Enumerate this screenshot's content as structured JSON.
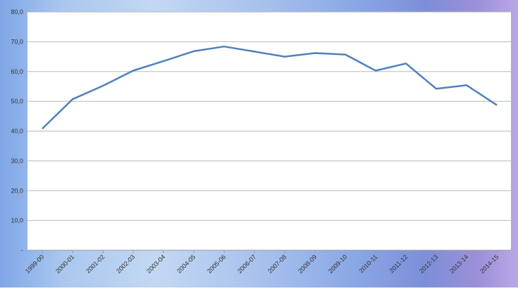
{
  "chart_data": {
    "type": "line",
    "title": "",
    "xlabel": "",
    "ylabel": "",
    "categories": [
      "1999-00",
      "2000-01",
      "2001-02",
      "2002-03",
      "2003-04",
      "2004-05",
      "2005-06",
      "2006-07",
      "2007-08",
      "2008-09",
      "2009-10",
      "2010-11",
      "2011-12",
      "2012-13",
      "2013-14",
      "2014-15"
    ],
    "series": [
      {
        "values": [
          40.8,
          50.7,
          55.2,
          60.3,
          63.5,
          66.8,
          68.4,
          66.7,
          65.0,
          66.2,
          65.7,
          60.3,
          62.7,
          54.2,
          55.4,
          48.7
        ]
      }
    ],
    "ylim": [
      0,
      80
    ],
    "yticks": [
      "-",
      "10,0",
      "20,0",
      "30,0",
      "40,0",
      "50,0",
      "60,0",
      "70,0",
      "80,0"
    ],
    "grid": true,
    "line_color": "#4f81bd"
  }
}
